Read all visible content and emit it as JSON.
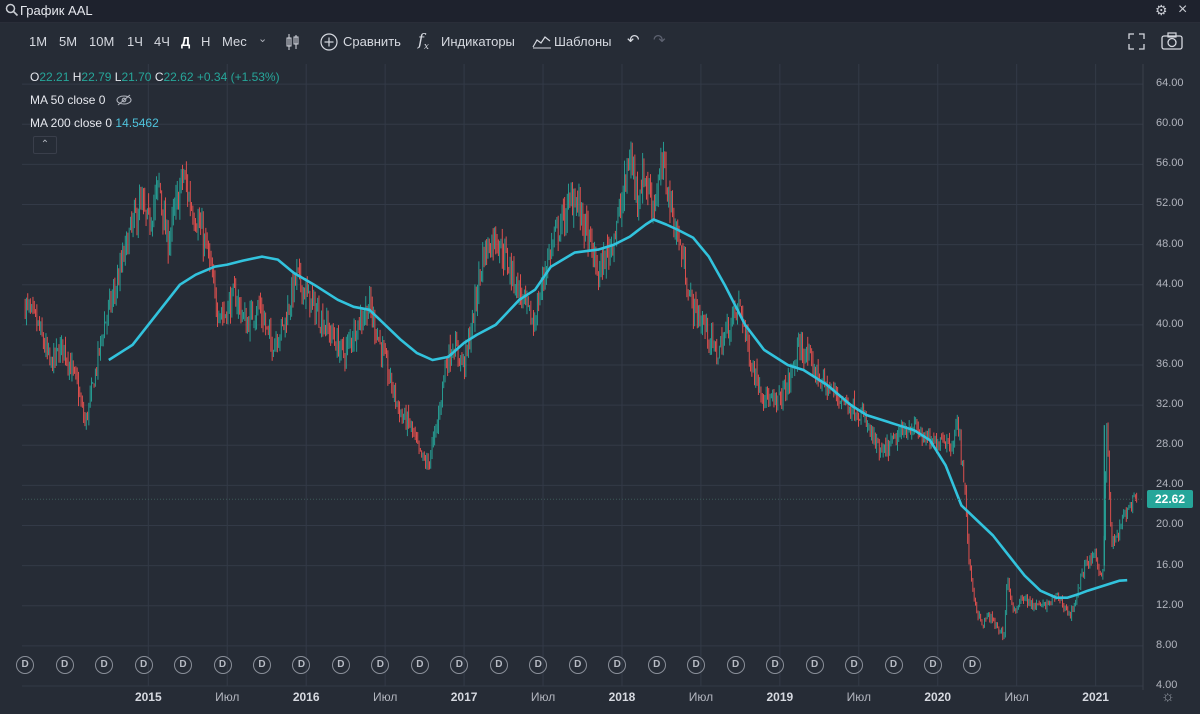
{
  "header": {
    "title": "График AAL",
    "search_icon": "search-icon",
    "settings_icon": "gear-icon",
    "close_icon": "close-icon"
  },
  "toolbar": {
    "intervals": [
      "1М",
      "5М",
      "10М",
      "1Ч",
      "4Ч",
      "Д",
      "Н",
      "Мес"
    ],
    "active_interval": "Д",
    "compare_label": "Сравнить",
    "indicators_label": "Индикаторы",
    "templates_label": "Шаблоны"
  },
  "legend": {
    "o_label": "O",
    "o": "22.21",
    "h_label": "H",
    "h": "22.79",
    "l_label": "L",
    "l": "21.70",
    "c_label": "C",
    "c": "22.62",
    "change": "+0.34 (+1.53%)",
    "ma50_label": "MA 50 close 0",
    "ma200_label": "MA 200 close 0",
    "ma200_value": "14.5462"
  },
  "colors": {
    "up": "#26a69a",
    "down": "#ef5350",
    "ma": "#32c3dd",
    "background": "#262c36"
  },
  "chart_data": {
    "type": "line",
    "title": "График AAL",
    "series": [
      {
        "name": "AAL price (daily candles)",
        "x": [
          2014.22,
          2014.3,
          2014.38,
          2014.46,
          2014.55,
          2014.6,
          2014.65,
          2014.72,
          2014.8,
          2014.88,
          2014.95,
          2015.0,
          2015.07,
          2015.12,
          2015.18,
          2015.22,
          2015.27,
          2015.32,
          2015.38,
          2015.43,
          2015.48,
          2015.55,
          2015.62,
          2015.7,
          2015.78,
          2015.86,
          2015.94,
          2016.0,
          2016.08,
          2016.16,
          2016.24,
          2016.32,
          2016.4,
          2016.47,
          2016.54,
          2016.6,
          2016.66,
          2016.72,
          2016.77,
          2016.83,
          2016.88,
          2016.93,
          2017.0,
          2017.05,
          2017.12,
          2017.2,
          2017.28,
          2017.36,
          2017.44,
          2017.52,
          2017.58,
          2017.64,
          2017.7,
          2017.78,
          2017.85,
          2017.93,
          2018.0,
          2018.05,
          2018.1,
          2018.14,
          2018.2,
          2018.26,
          2018.32,
          2018.38,
          2018.44,
          2018.52,
          2018.6,
          2018.68,
          2018.75,
          2018.82,
          2018.9,
          2018.97,
          2019.05,
          2019.13,
          2019.2,
          2019.28,
          2019.36,
          2019.44,
          2019.52,
          2019.58,
          2019.64,
          2019.7,
          2019.76,
          2019.83,
          2019.9,
          2019.97,
          2020.03,
          2020.08,
          2020.13,
          2020.17,
          2020.2,
          2020.24,
          2020.28,
          2020.32,
          2020.37,
          2020.42,
          2020.44,
          2020.48,
          2020.53,
          2020.6,
          2020.68,
          2020.76,
          2020.84,
          2020.88,
          2020.93,
          2021.0,
          2021.03,
          2021.05,
          2021.07,
          2021.1,
          2021.14,
          2021.18,
          2021.22,
          2021.26
        ],
        "values": [
          42.0,
          40.0,
          36.0,
          38.0,
          34.0,
          30.0,
          34.0,
          40.0,
          44.0,
          49.0,
          52.0,
          50.0,
          54.0,
          48.0,
          52.0,
          55.0,
          52.0,
          50.0,
          47.0,
          42.0,
          41.0,
          43.0,
          40.0,
          42.0,
          38.0,
          40.0,
          45.0,
          43.0,
          41.0,
          39.0,
          37.0,
          40.0,
          42.0,
          38.0,
          34.0,
          31.0,
          30.0,
          27.0,
          26.0,
          30.0,
          36.0,
          38.0,
          36.0,
          40.0,
          47.0,
          49.0,
          46.0,
          43.0,
          40.0,
          46.0,
          49.0,
          51.0,
          53.0,
          49.0,
          45.0,
          48.0,
          52.0,
          57.0,
          53.0,
          55.0,
          52.0,
          56.0,
          51.0,
          47.0,
          42.0,
          40.0,
          37.0,
          40.0,
          42.0,
          36.0,
          33.0,
          32.0,
          34.0,
          38.0,
          36.0,
          34.0,
          33.0,
          32.0,
          31.0,
          29.0,
          27.0,
          28.0,
          29.0,
          30.0,
          29.0,
          28.0,
          29.0,
          28.0,
          30.0,
          24.0,
          16.0,
          12.0,
          10.0,
          11.0,
          10.0,
          9.0,
          15.0,
          11.0,
          13.0,
          12.0,
          12.0,
          13.0,
          11.0,
          13.0,
          16.0,
          17.0,
          15.0,
          16.0,
          30.0,
          18.0,
          19.0,
          21.0,
          22.0,
          22.62
        ]
      },
      {
        "name": "MA 200 close 0",
        "x": [
          2014.75,
          2014.9,
          2015.05,
          2015.2,
          2015.3,
          2015.42,
          2015.5,
          2015.6,
          2015.72,
          2015.82,
          2015.92,
          2016.05,
          2016.2,
          2016.3,
          2016.4,
          2016.5,
          2016.6,
          2016.7,
          2016.8,
          2016.9,
          2017.0,
          2017.08,
          2017.2,
          2017.35,
          2017.45,
          2017.55,
          2017.7,
          2017.85,
          2017.95,
          2018.05,
          2018.15,
          2018.2,
          2018.28,
          2018.35,
          2018.45,
          2018.55,
          2018.65,
          2018.78,
          2018.9,
          2019.05,
          2019.15,
          2019.3,
          2019.45,
          2019.55,
          2019.65,
          2019.75,
          2019.85,
          2019.95,
          2020.05,
          2020.15,
          2020.25,
          2020.35,
          2020.45,
          2020.55,
          2020.65,
          2020.75,
          2020.82,
          2020.9,
          2020.95,
          2021.05,
          2021.15,
          2021.2
        ],
        "values": [
          36.5,
          38.0,
          41.0,
          44.0,
          45.0,
          45.8,
          46.0,
          46.4,
          46.8,
          46.5,
          45.2,
          44.0,
          42.5,
          41.8,
          41.5,
          40.0,
          38.5,
          37.2,
          36.5,
          36.8,
          38.2,
          39.0,
          40.0,
          42.5,
          43.5,
          45.8,
          47.2,
          47.5,
          48.0,
          48.8,
          50.0,
          50.5,
          50.0,
          49.5,
          48.7,
          46.8,
          44.0,
          40.0,
          37.5,
          36.0,
          35.5,
          34.0,
          32.0,
          31.0,
          30.5,
          30.0,
          29.5,
          28.5,
          26.0,
          22.0,
          20.5,
          19.0,
          17.0,
          15.0,
          13.5,
          12.8,
          12.8,
          13.2,
          13.5,
          14.0,
          14.5,
          14.55
        ]
      }
    ],
    "xlim": [
      2014.2,
      2021.3
    ],
    "ylim": [
      4,
      66
    ],
    "yticks": [
      4,
      8,
      12,
      16,
      20,
      24,
      28,
      32,
      36,
      40,
      44,
      48,
      52,
      56,
      60,
      64
    ],
    "ytick_labels": [
      "4.00",
      "8.00",
      "12.00",
      "16.00",
      "20.00",
      "24.00",
      "28.00",
      "32.00",
      "36.00",
      "40.00",
      "44.00",
      "48.00",
      "52.00",
      "56.00",
      "60.00",
      "64.00"
    ],
    "xticks": [
      {
        "x": 2015.0,
        "label": "2015",
        "year": true
      },
      {
        "x": 2015.5,
        "label": "Июл",
        "year": false
      },
      {
        "x": 2016.0,
        "label": "2016",
        "year": true
      },
      {
        "x": 2016.5,
        "label": "Июл",
        "year": false
      },
      {
        "x": 2017.0,
        "label": "2017",
        "year": true
      },
      {
        "x": 2017.5,
        "label": "Июл",
        "year": false
      },
      {
        "x": 2018.0,
        "label": "2018",
        "year": true
      },
      {
        "x": 2018.5,
        "label": "Июл",
        "year": false
      },
      {
        "x": 2019.0,
        "label": "2019",
        "year": true
      },
      {
        "x": 2019.5,
        "label": "Июл",
        "year": false
      },
      {
        "x": 2020.0,
        "label": "2020",
        "year": true
      },
      {
        "x": 2020.5,
        "label": "Июл",
        "year": false
      },
      {
        "x": 2021.0,
        "label": "2021",
        "year": true
      }
    ],
    "dividend_label": "D",
    "dividend_x": [
      2014.22,
      2014.47,
      2014.72,
      2014.97,
      2015.22,
      2015.47,
      2015.72,
      2015.97,
      2016.22,
      2016.47,
      2016.72,
      2016.97,
      2017.22,
      2017.47,
      2017.72,
      2017.97,
      2018.22,
      2018.47,
      2018.72,
      2018.97,
      2019.22,
      2019.47,
      2019.72,
      2019.97,
      2020.22
    ],
    "last_price": "22.62",
    "last_price_value": 22.62
  }
}
